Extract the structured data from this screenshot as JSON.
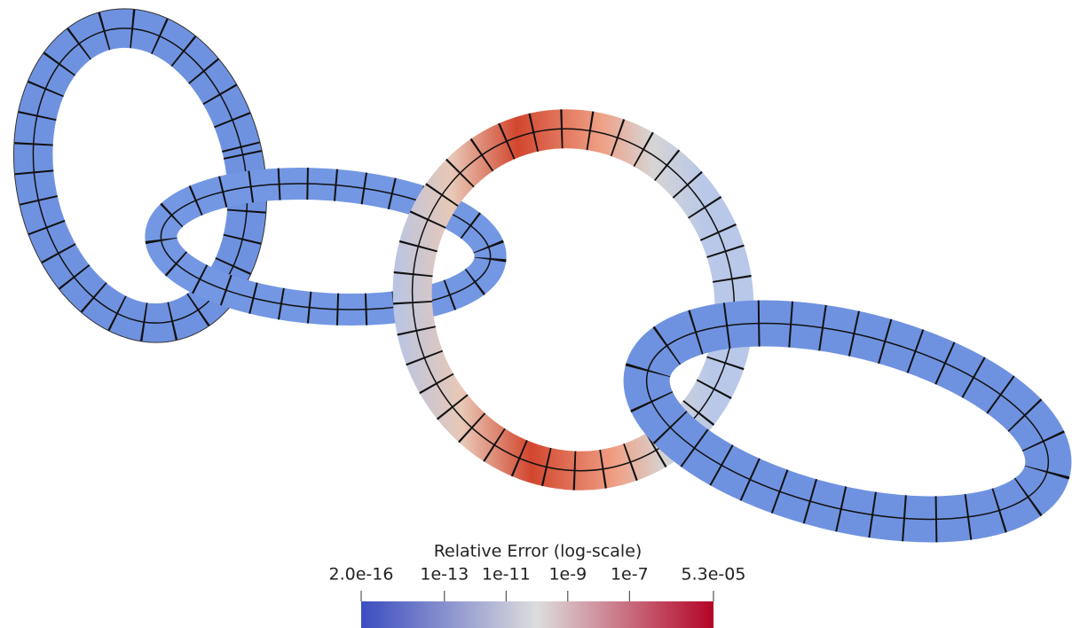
{
  "chart_data": {
    "type": "colorbar",
    "title": "Relative Error (log-scale)",
    "log_scale": true,
    "xlim": [
      2e-16,
      5.3e-05
    ],
    "xticks": [
      {
        "value": 2e-16,
        "label": "2.0e-16"
      },
      {
        "value": 1e-13,
        "label": "1e-13"
      },
      {
        "value": 1e-11,
        "label": "1e-11"
      },
      {
        "value": 1e-09,
        "label": "1e-9"
      },
      {
        "value": 1e-07,
        "label": "1e-7"
      },
      {
        "value": 5.3e-05,
        "label": "5.3e-05"
      }
    ],
    "colors": [
      "#3b4cc0",
      "#dddddd",
      "#b40426"
    ]
  }
}
